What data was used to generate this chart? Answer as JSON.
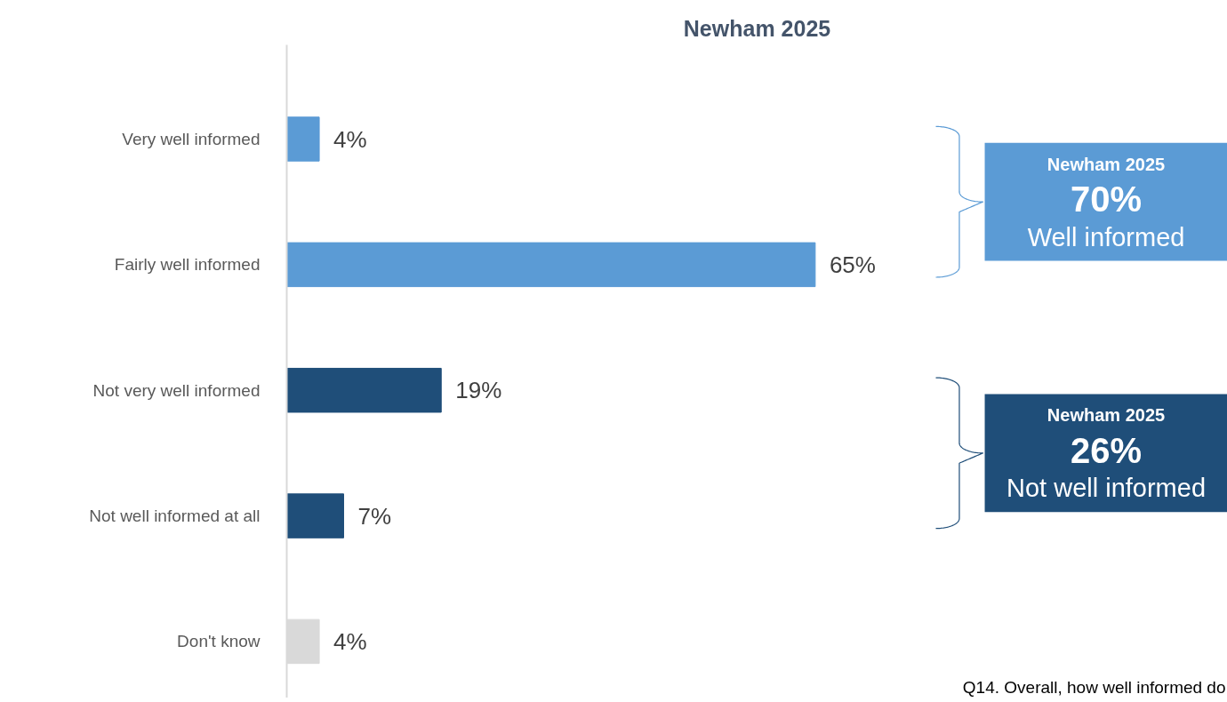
{
  "chart_data": {
    "type": "bar",
    "orientation": "horizontal",
    "title": "Newham 2025",
    "categories": [
      "Very well informed",
      "Fairly well informed",
      "Not very well informed",
      "Not well informed at all",
      "Don't know"
    ],
    "values": [
      4,
      65,
      19,
      7,
      4
    ],
    "colors": [
      "#5b9bd5",
      "#5b9bd5",
      "#1f4e79",
      "#1f4e79",
      "#d9d9d9"
    ],
    "value_labels": [
      "4%",
      "65%",
      "19%",
      "7%",
      "4%"
    ],
    "grid": false,
    "annotations": [
      "Newham 2025",
      "70%",
      "Well informed",
      "Newham 2025",
      "26%",
      "Not well informed",
      "Q14. Overall, how well informed do"
    ]
  }
}
